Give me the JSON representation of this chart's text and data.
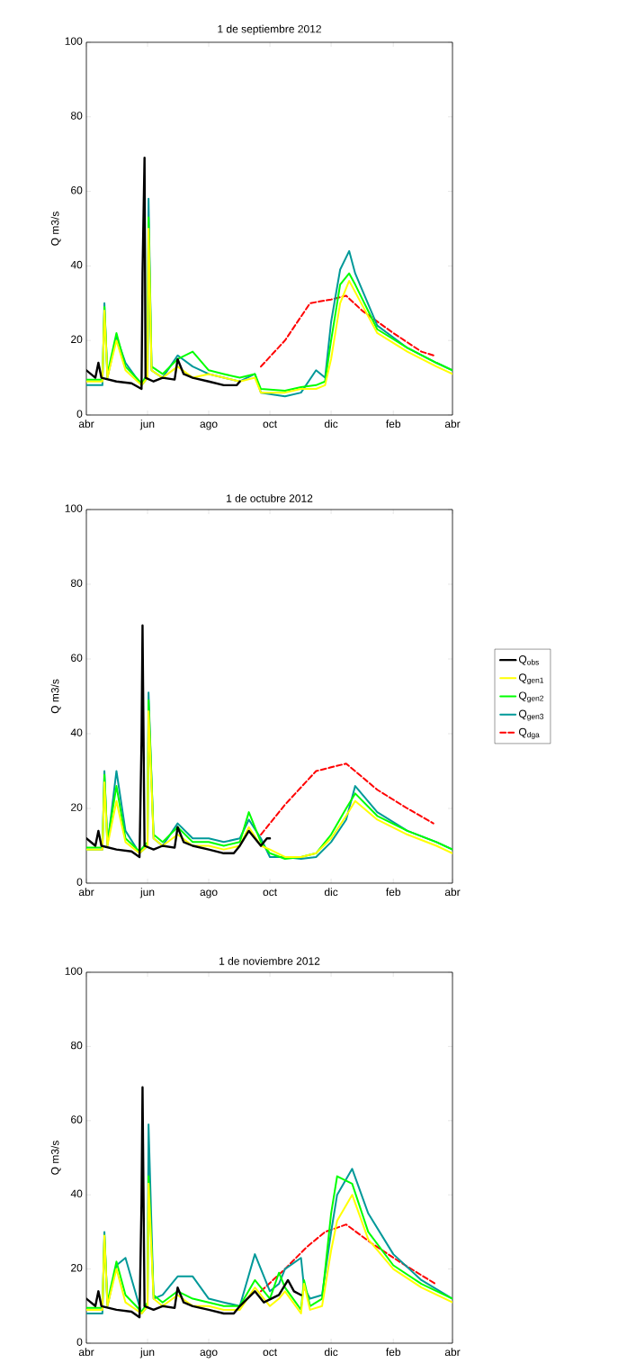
{
  "chart_data": [
    {
      "type": "line",
      "title": "1 de septiembre 2012",
      "ylabel": "Q m3/s",
      "xlim": [
        "2012-04-01",
        "2013-04-01"
      ],
      "ylim": [
        0,
        100
      ],
      "xticks": [
        {
          "value": "2012-04-01",
          "label": "abr"
        },
        {
          "value": "2012-06-01",
          "label": "jun"
        },
        {
          "value": "2012-08-01",
          "label": "ago"
        },
        {
          "value": "2012-10-01",
          "label": "oct"
        },
        {
          "value": "2012-12-01",
          "label": "dic"
        },
        {
          "value": "2013-02-01",
          "label": "feb"
        },
        {
          "value": "2013-04-01",
          "label": "abr"
        }
      ],
      "yticks": [
        0,
        20,
        40,
        60,
        80,
        100
      ],
      "marker": "none",
      "series": [
        {
          "color": "#000000",
          "x": [
            "2012-04-01",
            "2012-04-10",
            "2012-04-13",
            "2012-04-16",
            "2012-05-01",
            "2012-05-16",
            "2012-05-26",
            "2012-05-27",
            "2012-05-29",
            "2012-05-30",
            "2012-06-07",
            "2012-06-16",
            "2012-06-28",
            "2012-07-01",
            "2012-07-07",
            "2012-07-16",
            "2012-08-01",
            "2012-08-16",
            "2012-08-29",
            "2012-09-01"
          ],
          "values": [
            12,
            10,
            14,
            10,
            9,
            8.5,
            7,
            38,
            69,
            10,
            9,
            10,
            9.5,
            15,
            11,
            10,
            9,
            8,
            8,
            9
          ]
        },
        {
          "color": "#ffff00",
          "x": [
            "2012-04-01",
            "2012-04-17",
            "2012-04-19",
            "2012-04-22",
            "2012-05-01",
            "2012-05-10",
            "2012-05-26",
            "2012-06-01",
            "2012-06-02",
            "2012-06-05",
            "2012-06-16",
            "2012-07-01",
            "2012-07-16",
            "2012-08-01",
            "2012-08-16",
            "2012-09-01",
            "2012-09-16",
            "2012-09-22",
            "2012-10-16",
            "2012-11-01",
            "2012-11-16",
            "2012-11-25",
            "2012-12-01",
            "2012-12-10",
            "2012-12-19",
            "2012-12-25",
            "2013-01-16",
            "2013-02-15",
            "2013-03-16",
            "2013-04-01"
          ],
          "values": [
            9,
            9,
            28,
            10,
            20,
            12,
            8,
            10,
            50,
            12,
            10,
            13,
            10,
            11,
            10,
            9,
            10,
            6,
            6,
            7,
            7,
            8,
            15,
            30,
            36,
            33,
            22,
            17,
            13,
            11
          ]
        },
        {
          "color": "#00ff00",
          "x": [
            "2012-04-01",
            "2012-04-17",
            "2012-04-19",
            "2012-04-22",
            "2012-05-01",
            "2012-05-10",
            "2012-05-26",
            "2012-06-01",
            "2012-06-02",
            "2012-06-05",
            "2012-06-16",
            "2012-07-01",
            "2012-07-16",
            "2012-08-01",
            "2012-08-16",
            "2012-09-01",
            "2012-09-16",
            "2012-09-22",
            "2012-10-16",
            "2012-11-01",
            "2012-11-16",
            "2012-11-25",
            "2012-12-01",
            "2012-12-10",
            "2012-12-19",
            "2012-12-25",
            "2013-01-16",
            "2013-02-15",
            "2013-03-16",
            "2013-04-01"
          ],
          "values": [
            9.5,
            9.5,
            29,
            11,
            22,
            13,
            8.5,
            11,
            53,
            13,
            11,
            15,
            17,
            12,
            11,
            10,
            11,
            7,
            6.5,
            7.5,
            8,
            9,
            20,
            35,
            38,
            35,
            23,
            18,
            14,
            12
          ]
        },
        {
          "color": "#009999",
          "x": [
            "2012-04-01",
            "2012-04-17",
            "2012-04-19",
            "2012-04-22",
            "2012-05-01",
            "2012-05-10",
            "2012-05-26",
            "2012-06-01",
            "2012-06-02",
            "2012-06-05",
            "2012-06-16",
            "2012-07-01",
            "2012-07-16",
            "2012-08-01",
            "2012-08-16",
            "2012-09-01",
            "2012-09-16",
            "2012-09-22",
            "2012-10-16",
            "2012-11-01",
            "2012-11-16",
            "2012-11-25",
            "2012-12-01",
            "2012-12-10",
            "2012-12-19",
            "2012-12-25",
            "2013-01-16",
            "2013-02-15",
            "2013-03-16",
            "2013-04-01"
          ],
          "values": [
            8,
            8,
            30,
            10,
            21,
            14,
            8,
            10,
            58,
            12,
            10,
            16,
            13,
            11,
            10,
            9,
            11,
            6,
            5,
            6,
            12,
            10,
            25,
            39,
            44,
            38,
            24,
            18,
            14,
            12
          ]
        },
        {
          "color": "#ff0000",
          "line_style": "dashed",
          "x": [
            "2012-09-22",
            "2012-10-16",
            "2012-11-10",
            "2012-12-01",
            "2012-12-16",
            "2013-01-01",
            "2013-02-01",
            "2013-03-01",
            "2013-03-13"
          ],
          "values": [
            13,
            20,
            30,
            31,
            32,
            28,
            22,
            17,
            16
          ]
        }
      ]
    },
    {
      "type": "line",
      "title": "1 de octubre 2012",
      "ylabel": "Q m3/s",
      "xlim": [
        "2012-04-01",
        "2013-04-01"
      ],
      "ylim": [
        0,
        100
      ],
      "xticks": [
        {
          "value": "2012-04-01",
          "label": "abr"
        },
        {
          "value": "2012-06-01",
          "label": "jun"
        },
        {
          "value": "2012-08-01",
          "label": "ago"
        },
        {
          "value": "2012-10-01",
          "label": "oct"
        },
        {
          "value": "2012-12-01",
          "label": "dic"
        },
        {
          "value": "2013-02-01",
          "label": "feb"
        },
        {
          "value": "2013-04-01",
          "label": "abr"
        }
      ],
      "yticks": [
        0,
        20,
        40,
        60,
        80,
        100
      ],
      "marker": "none",
      "legend": "right",
      "series": [
        {
          "name": "Q$_{obs}$",
          "color": "#000000",
          "x": [
            "2012-04-01",
            "2012-04-10",
            "2012-04-13",
            "2012-04-16",
            "2012-05-01",
            "2012-05-16",
            "2012-05-24",
            "2012-05-26",
            "2012-05-27",
            "2012-05-29",
            "2012-06-07",
            "2012-06-16",
            "2012-06-28",
            "2012-07-01",
            "2012-07-07",
            "2012-07-16",
            "2012-08-01",
            "2012-08-16",
            "2012-08-26",
            "2012-09-01",
            "2012-09-10",
            "2012-09-16",
            "2012-09-22",
            "2012-09-28",
            "2012-10-01"
          ],
          "values": [
            12,
            10,
            14,
            10,
            9,
            8.5,
            7,
            38,
            69,
            10,
            9,
            10,
            9.5,
            15,
            11,
            10,
            9,
            8,
            8,
            10,
            14,
            12,
            10,
            12,
            12
          ]
        },
        {
          "name": "Q$_{gen1}$",
          "color": "#ffff00",
          "x": [
            "2012-04-01",
            "2012-04-17",
            "2012-04-19",
            "2012-04-22",
            "2012-05-01",
            "2012-05-10",
            "2012-05-24",
            "2012-06-01",
            "2012-06-02",
            "2012-06-07",
            "2012-06-16",
            "2012-07-01",
            "2012-07-16",
            "2012-08-01",
            "2012-08-16",
            "2012-09-01",
            "2012-09-10",
            "2012-09-22",
            "2012-10-01",
            "2012-10-16",
            "2012-11-01",
            "2012-11-16",
            "2012-12-01",
            "2012-12-16",
            "2012-12-25",
            "2013-01-16",
            "2013-02-15",
            "2013-03-16",
            "2013-04-01"
          ],
          "values": [
            9,
            9,
            27,
            10,
            22,
            11,
            8,
            10,
            46,
            12,
            10,
            13,
            10,
            10,
            9,
            10,
            15,
            10,
            9,
            7,
            7,
            8,
            12,
            18,
            22,
            17,
            13,
            10,
            8
          ]
        },
        {
          "name": "Q$_{gen2}$",
          "color": "#00ff00",
          "x": [
            "2012-04-01",
            "2012-04-17",
            "2012-04-19",
            "2012-04-22",
            "2012-05-01",
            "2012-05-10",
            "2012-05-24",
            "2012-06-01",
            "2012-06-02",
            "2012-06-07",
            "2012-06-16",
            "2012-07-01",
            "2012-07-16",
            "2012-08-01",
            "2012-08-16",
            "2012-09-01",
            "2012-09-10",
            "2012-09-22",
            "2012-10-01",
            "2012-10-16",
            "2012-11-01",
            "2012-11-16",
            "2012-12-01",
            "2012-12-16",
            "2012-12-25",
            "2013-01-16",
            "2013-02-15",
            "2013-03-16",
            "2013-04-01"
          ],
          "values": [
            9.5,
            9.5,
            29,
            11,
            26,
            12,
            8.5,
            11,
            49,
            13,
            11,
            15,
            11,
            11,
            10,
            11,
            19,
            11,
            8,
            6.5,
            7,
            8,
            13,
            20,
            24,
            18,
            14,
            11,
            9
          ]
        },
        {
          "name": "Q$_{gen3}$",
          "color": "#009999",
          "x": [
            "2012-04-01",
            "2012-04-17",
            "2012-04-19",
            "2012-04-22",
            "2012-05-01",
            "2012-05-10",
            "2012-05-24",
            "2012-06-01",
            "2012-06-02",
            "2012-06-07",
            "2012-06-16",
            "2012-07-01",
            "2012-07-16",
            "2012-08-01",
            "2012-08-16",
            "2012-09-01",
            "2012-09-10",
            "2012-09-22",
            "2012-10-01",
            "2012-10-16",
            "2012-11-01",
            "2012-11-16",
            "2012-12-01",
            "2012-12-16",
            "2012-12-25",
            "2013-01-16",
            "2013-02-15",
            "2013-03-16",
            "2013-04-01"
          ],
          "values": [
            9,
            9,
            30,
            10,
            30,
            14,
            8,
            10,
            51,
            12,
            10,
            16,
            12,
            12,
            11,
            12,
            17,
            12,
            7,
            7,
            6.5,
            7,
            11,
            17,
            26,
            19,
            14,
            11,
            9
          ]
        },
        {
          "name": "Q$_{dga}$",
          "color": "#ff0000",
          "line_style": "dashed",
          "x": [
            "2012-09-22",
            "2012-10-16",
            "2012-11-16",
            "2012-12-01",
            "2012-12-16",
            "2013-01-16",
            "2013-02-15",
            "2013-03-13"
          ],
          "values": [
            13,
            21,
            30,
            31,
            32,
            25,
            20,
            16
          ]
        }
      ]
    },
    {
      "type": "line",
      "title": "1 de noviembre 2012",
      "ylabel": "Q m3/s",
      "xlim": [
        "2012-04-01",
        "2013-04-01"
      ],
      "ylim": [
        0,
        100
      ],
      "xticks": [
        {
          "value": "2012-04-01",
          "label": "abr"
        },
        {
          "value": "2012-06-01",
          "label": "jun"
        },
        {
          "value": "2012-08-01",
          "label": "ago"
        },
        {
          "value": "2012-10-01",
          "label": "oct"
        },
        {
          "value": "2012-12-01",
          "label": "dic"
        },
        {
          "value": "2013-02-01",
          "label": "feb"
        },
        {
          "value": "2013-04-01",
          "label": "abr"
        }
      ],
      "yticks": [
        0,
        20,
        40,
        60,
        80,
        100
      ],
      "marker": "none",
      "series": [
        {
          "color": "#000000",
          "x": [
            "2012-04-01",
            "2012-04-10",
            "2012-04-13",
            "2012-04-16",
            "2012-05-01",
            "2012-05-16",
            "2012-05-24",
            "2012-05-26",
            "2012-05-27",
            "2012-05-29",
            "2012-06-07",
            "2012-06-16",
            "2012-06-28",
            "2012-07-01",
            "2012-07-07",
            "2012-07-16",
            "2012-08-01",
            "2012-08-16",
            "2012-08-26",
            "2012-09-01",
            "2012-09-16",
            "2012-09-25",
            "2012-10-10",
            "2012-10-19",
            "2012-10-25",
            "2012-11-01"
          ],
          "values": [
            12,
            10,
            14,
            10,
            9,
            8.5,
            7,
            38,
            69,
            10,
            9,
            10,
            9.5,
            15,
            11,
            10,
            9,
            8,
            8,
            10,
            14,
            11,
            13,
            17,
            14,
            13
          ]
        },
        {
          "color": "#ffff00",
          "x": [
            "2012-04-01",
            "2012-04-17",
            "2012-04-19",
            "2012-04-22",
            "2012-05-01",
            "2012-05-10",
            "2012-05-26",
            "2012-06-01",
            "2012-06-02",
            "2012-06-07",
            "2012-06-16",
            "2012-07-01",
            "2012-07-16",
            "2012-08-01",
            "2012-08-16",
            "2012-09-01",
            "2012-09-16",
            "2012-10-01",
            "2012-10-10",
            "2012-10-16",
            "2012-11-01",
            "2012-11-04",
            "2012-11-10",
            "2012-11-22",
            "2012-12-01",
            "2012-12-07",
            "2012-12-22",
            "2013-01-07",
            "2013-02-01",
            "2013-03-01",
            "2013-04-01"
          ],
          "values": [
            9,
            9,
            29,
            10,
            20,
            11,
            8,
            10,
            43,
            12,
            10,
            13,
            10,
            10,
            9,
            9,
            15,
            10,
            12,
            14,
            8,
            16,
            9,
            10,
            25,
            33,
            40,
            28,
            20,
            15,
            11
          ]
        },
        {
          "color": "#00ff00",
          "x": [
            "2012-04-01",
            "2012-04-17",
            "2012-04-19",
            "2012-04-22",
            "2012-05-01",
            "2012-05-10",
            "2012-05-26",
            "2012-06-01",
            "2012-06-02",
            "2012-06-07",
            "2012-06-16",
            "2012-07-01",
            "2012-07-16",
            "2012-08-01",
            "2012-08-16",
            "2012-09-01",
            "2012-09-16",
            "2012-10-01",
            "2012-10-10",
            "2012-10-16",
            "2012-11-01",
            "2012-11-04",
            "2012-11-10",
            "2012-11-22",
            "2012-12-01",
            "2012-12-07",
            "2012-12-22",
            "2013-01-07",
            "2013-02-01",
            "2013-03-01",
            "2013-04-01"
          ],
          "values": [
            9.5,
            9.5,
            29,
            11,
            22,
            13,
            8.5,
            11,
            45,
            13,
            11,
            14,
            12,
            11,
            10,
            10,
            17,
            12,
            19,
            15,
            9,
            17,
            10,
            12,
            35,
            45,
            43,
            30,
            21,
            16,
            12
          ]
        },
        {
          "color": "#009999",
          "x": [
            "2012-04-01",
            "2012-04-17",
            "2012-04-19",
            "2012-04-22",
            "2012-05-01",
            "2012-05-10",
            "2012-05-26",
            "2012-06-01",
            "2012-06-02",
            "2012-06-07",
            "2012-06-16",
            "2012-07-01",
            "2012-07-16",
            "2012-08-01",
            "2012-08-16",
            "2012-09-01",
            "2012-09-16",
            "2012-10-01",
            "2012-10-10",
            "2012-10-16",
            "2012-11-01",
            "2012-11-04",
            "2012-11-10",
            "2012-11-22",
            "2012-12-01",
            "2012-12-07",
            "2012-12-22",
            "2013-01-07",
            "2013-02-01",
            "2013-03-01",
            "2013-04-01"
          ],
          "values": [
            8,
            8,
            30,
            10,
            21,
            23,
            8,
            10,
            59,
            12,
            13,
            18,
            18,
            12,
            11,
            10,
            24,
            14,
            16,
            20,
            23,
            15,
            12,
            13,
            30,
            40,
            47,
            35,
            24,
            17,
            12
          ]
        },
        {
          "color": "#ff0000",
          "line_style": "dashed",
          "x": [
            "2012-09-22",
            "2012-10-16",
            "2012-11-07",
            "2012-11-25",
            "2012-12-16",
            "2013-01-10",
            "2013-02-07",
            "2013-03-15"
          ],
          "values": [
            14,
            20,
            26,
            30,
            32,
            27,
            22,
            16
          ]
        }
      ]
    }
  ]
}
